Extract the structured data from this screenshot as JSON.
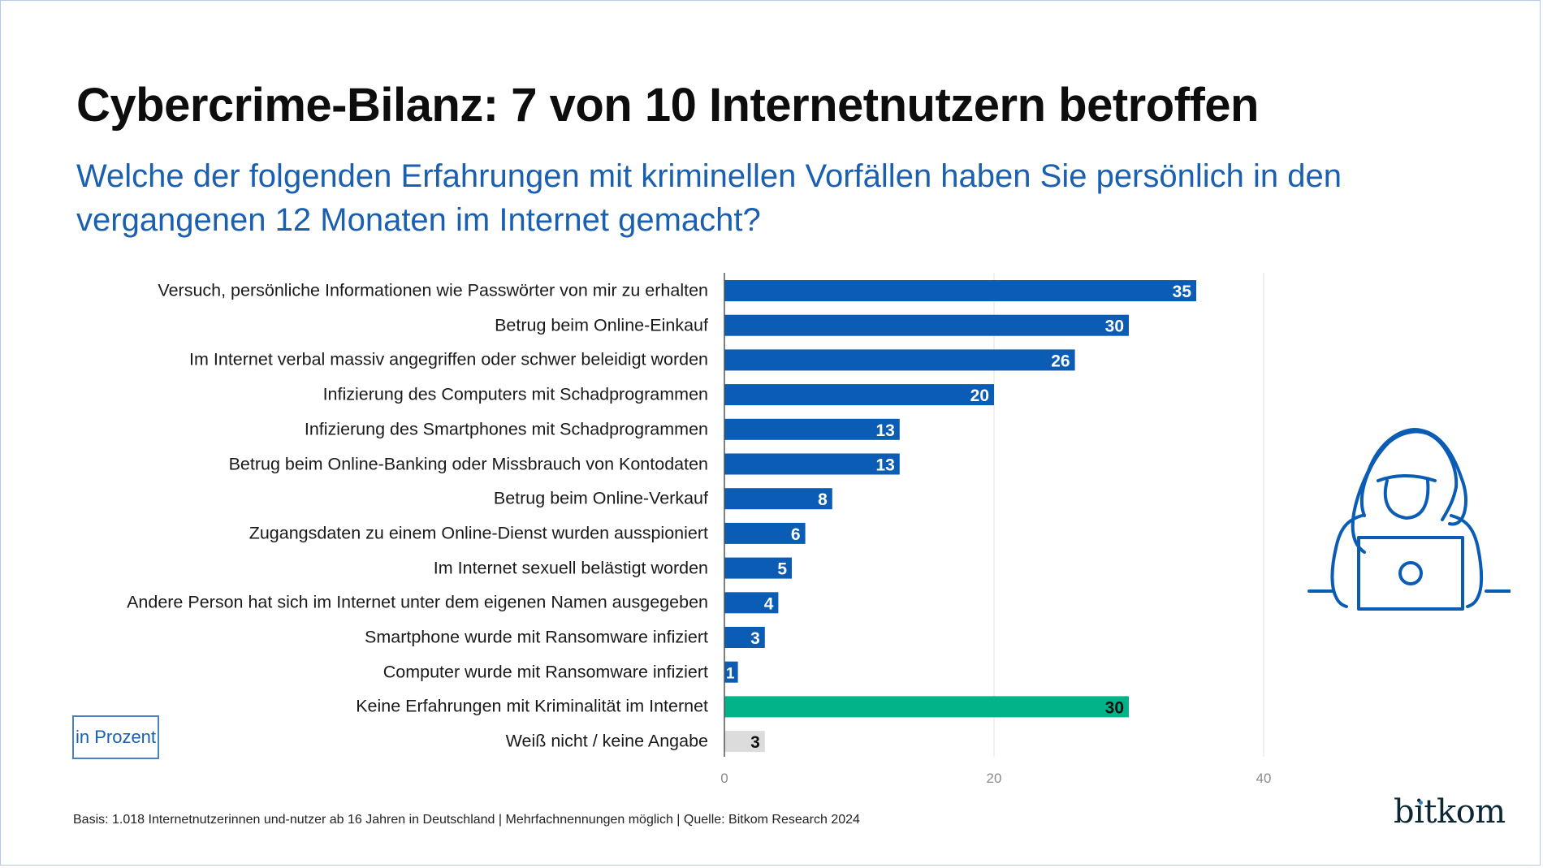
{
  "header": {
    "title": "Cybercrime-Bilanz: 7 von 10 Internetnutzern betroffen",
    "subtitle": "Welche der folgenden Erfahrungen mit kriminellen Vorfällen haben Sie persönlich in den vergangenen 12 Monaten im Internet gemacht?"
  },
  "unit_label": "in Prozent",
  "footer": "Basis: 1.018 Internetnutzerinnen und-nutzer ab 16 Jahren in Deutschland | Mehrfachnennungen möglich | Quelle: Bitkom Research 2024",
  "logo": "bitkom",
  "icons": {
    "illustration": "hooded-hacker-laptop-icon"
  },
  "colors": {
    "primary_bar": "#0a5cb4",
    "none_bar": "#00b388",
    "unknown_bar": "#dcdcdc",
    "subtitle": "#1a5fb0",
    "grid": "#e2e2e2"
  },
  "chart_data": {
    "type": "bar",
    "orientation": "horizontal",
    "title": "Cybercrime-Bilanz: 7 von 10 Internetnutzern betroffen",
    "subtitle": "Welche der folgenden Erfahrungen mit kriminellen Vorfällen haben Sie persönlich in den vergangenen 12 Monaten im Internet gemacht?",
    "xlabel": "",
    "ylabel": "",
    "unit": "in Prozent",
    "xlim": [
      0,
      40
    ],
    "xticks": [
      0,
      20,
      40
    ],
    "grid": true,
    "legend": "none",
    "categories": [
      "Versuch, persönliche Informationen wie Passwörter von mir zu erhalten",
      "Betrug beim Online-Einkauf",
      "Im Internet verbal massiv angegriffen oder schwer beleidigt worden",
      "Infizierung des Computers mit Schadprogrammen",
      "Infizierung des Smartphones mit Schadprogrammen",
      "Betrug beim Online-Banking oder Missbrauch von Kontodaten",
      "Betrug beim Online-Verkauf",
      "Zugangsdaten zu einem Online-Dienst wurden ausspioniert",
      "Im Internet sexuell belästigt worden",
      "Andere Person hat sich im Internet unter dem eigenen Namen ausgegeben",
      "Smartphone wurde mit Ransomware infiziert",
      "Computer wurde mit Ransomware infiziert",
      "Keine Erfahrungen mit Kriminalität im Internet",
      "Weiß nicht / keine Angabe"
    ],
    "values": [
      35,
      30,
      26,
      20,
      13,
      13,
      8,
      6,
      5,
      4,
      3,
      1,
      30,
      3
    ],
    "bar_types": [
      "primary",
      "primary",
      "primary",
      "primary",
      "primary",
      "primary",
      "primary",
      "primary",
      "primary",
      "primary",
      "primary",
      "primary",
      "none",
      "unknown"
    ]
  }
}
